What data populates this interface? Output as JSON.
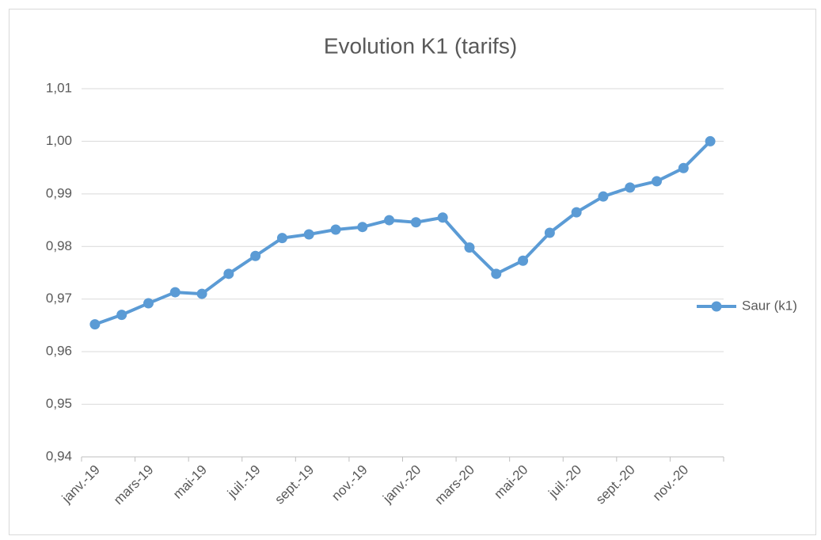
{
  "chart_data": {
    "type": "line",
    "title": "Evolution K1 (tarifs)",
    "categories": [
      "janv.-19",
      null,
      "mars-19",
      null,
      "mai-19",
      null,
      "juil.-19",
      null,
      "sept.-19",
      null,
      "nov.-19",
      null,
      "janv.-20",
      null,
      "mars-20",
      null,
      "mai-20",
      null,
      "juil.-20",
      null,
      "sept.-20",
      null,
      "nov.-20",
      null
    ],
    "series": [
      {
        "name": "Saur (k1)",
        "color": "#5b9bd5",
        "values": [
          0.9652,
          0.967,
          0.9692,
          0.9713,
          0.971,
          0.9748,
          0.9782,
          0.9816,
          0.9823,
          0.9832,
          0.9837,
          0.985,
          0.9846,
          0.9855,
          0.9798,
          0.9748,
          0.9773,
          0.9826,
          0.9865,
          0.9895,
          0.9912,
          0.9924,
          0.9949,
          1.0
        ]
      }
    ],
    "ylim": [
      0.94,
      1.01
    ],
    "yticks": [
      {
        "value": 0.94,
        "label": "0,94"
      },
      {
        "value": 0.95,
        "label": "0,95"
      },
      {
        "value": 0.96,
        "label": "0,96"
      },
      {
        "value": 0.97,
        "label": "0,97"
      },
      {
        "value": 0.98,
        "label": "0,98"
      },
      {
        "value": 0.99,
        "label": "0,99"
      },
      {
        "value": 1.0,
        "label": "1,00"
      },
      {
        "value": 1.01,
        "label": "1,01"
      }
    ],
    "grid": true,
    "legend": "right"
  }
}
